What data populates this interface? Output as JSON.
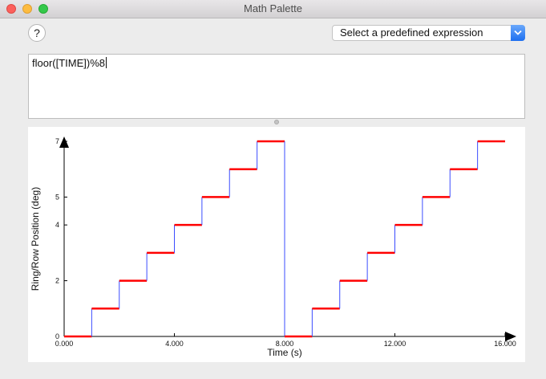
{
  "window": {
    "title": "Math Palette"
  },
  "toolbar": {
    "help_label": "?",
    "select_label": "Select a predefined expression"
  },
  "expression": {
    "value": "floor([TIME])%8"
  },
  "colors": {
    "steps": "#ff0000",
    "risers": "#3b4cff",
    "axis": "#000000"
  },
  "chart_data": {
    "type": "line",
    "xlabel": "Time (s)",
    "ylabel": "Ring/Row Position (deg)",
    "xlim": [
      0,
      16
    ],
    "ylim": [
      0,
      7
    ],
    "x_ticks": [
      0,
      4,
      8,
      12,
      16
    ],
    "x_tick_labels": [
      "0.000",
      "4.000",
      "8.000",
      "12.000",
      "16.000"
    ],
    "y_ticks": [
      0,
      2,
      4,
      5,
      7
    ],
    "y_tick_labels": [
      "0",
      "2",
      "4",
      "5",
      "7"
    ],
    "grid": false,
    "series": [
      {
        "x": [
          0,
          1,
          1,
          2,
          2,
          3,
          3,
          4,
          4,
          5,
          5,
          6,
          6,
          7,
          7,
          8,
          8,
          9,
          9,
          10,
          10,
          11,
          11,
          12,
          12,
          13,
          13,
          14,
          14,
          15,
          15,
          16
        ],
        "y": [
          0,
          0,
          1,
          1,
          2,
          2,
          3,
          3,
          4,
          4,
          5,
          5,
          6,
          6,
          7,
          7,
          0,
          0,
          1,
          1,
          2,
          2,
          3,
          3,
          4,
          4,
          5,
          5,
          6,
          6,
          7,
          7
        ]
      }
    ]
  }
}
